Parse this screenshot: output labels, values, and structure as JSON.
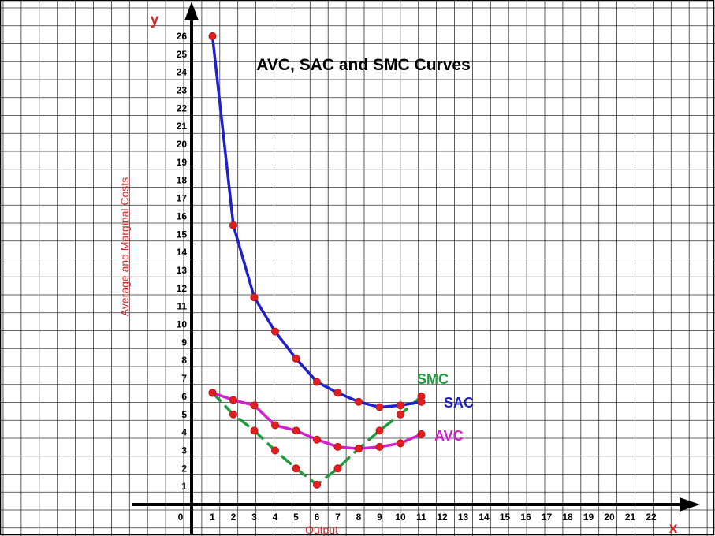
{
  "chart_data": {
    "type": "line",
    "title": "AVC, SAC and SMC Curves",
    "xlabel": "Output",
    "ylabel": "Average and Marginal Costs",
    "x_axis_letter": "x",
    "y_axis_letter": "y",
    "origin_label": "0",
    "xlim": [
      0,
      22
    ],
    "ylim": [
      0,
      26
    ],
    "x_ticks": [
      1,
      2,
      3,
      4,
      5,
      6,
      7,
      8,
      9,
      10,
      11,
      12,
      13,
      14,
      15,
      16,
      17,
      18,
      19,
      20,
      21,
      22
    ],
    "y_ticks": [
      1,
      2,
      3,
      4,
      5,
      6,
      7,
      8,
      9,
      10,
      11,
      12,
      13,
      14,
      15,
      16,
      17,
      18,
      19,
      20,
      21,
      22,
      23,
      24,
      25,
      26
    ],
    "grid": true,
    "series": [
      {
        "name": "SAC",
        "color": "#1f1fcc",
        "style": "solid",
        "points": [
          [
            1,
            26.0
          ],
          [
            2,
            15.5
          ],
          [
            3,
            11.5
          ],
          [
            4,
            9.6
          ],
          [
            5,
            8.1
          ],
          [
            6,
            6.8
          ],
          [
            7,
            6.2
          ],
          [
            8,
            5.7
          ],
          [
            9,
            5.4
          ],
          [
            10,
            5.5
          ],
          [
            11,
            5.7
          ]
        ]
      },
      {
        "name": "AVC",
        "color": "#d21fd2",
        "style": "solid",
        "points": [
          [
            1,
            6.2
          ],
          [
            2,
            5.8
          ],
          [
            3,
            5.5
          ],
          [
            4,
            4.4
          ],
          [
            5,
            4.1
          ],
          [
            6,
            3.6
          ],
          [
            7,
            3.2
          ],
          [
            8,
            3.1
          ],
          [
            9,
            3.2
          ],
          [
            10,
            3.4
          ],
          [
            11,
            3.9
          ]
        ]
      },
      {
        "name": "SMC",
        "color": "#1f9a3c",
        "style": "dashed",
        "points": [
          [
            1,
            6.2
          ],
          [
            2,
            5.0
          ],
          [
            3,
            4.1
          ],
          [
            4,
            3.0
          ],
          [
            5,
            2.0
          ],
          [
            6,
            1.1
          ],
          [
            7,
            2.0
          ],
          [
            8,
            3.1
          ],
          [
            9,
            4.1
          ],
          [
            10,
            5.0
          ],
          [
            11,
            6.0
          ]
        ]
      }
    ],
    "marker_color": "#e21f1f"
  }
}
